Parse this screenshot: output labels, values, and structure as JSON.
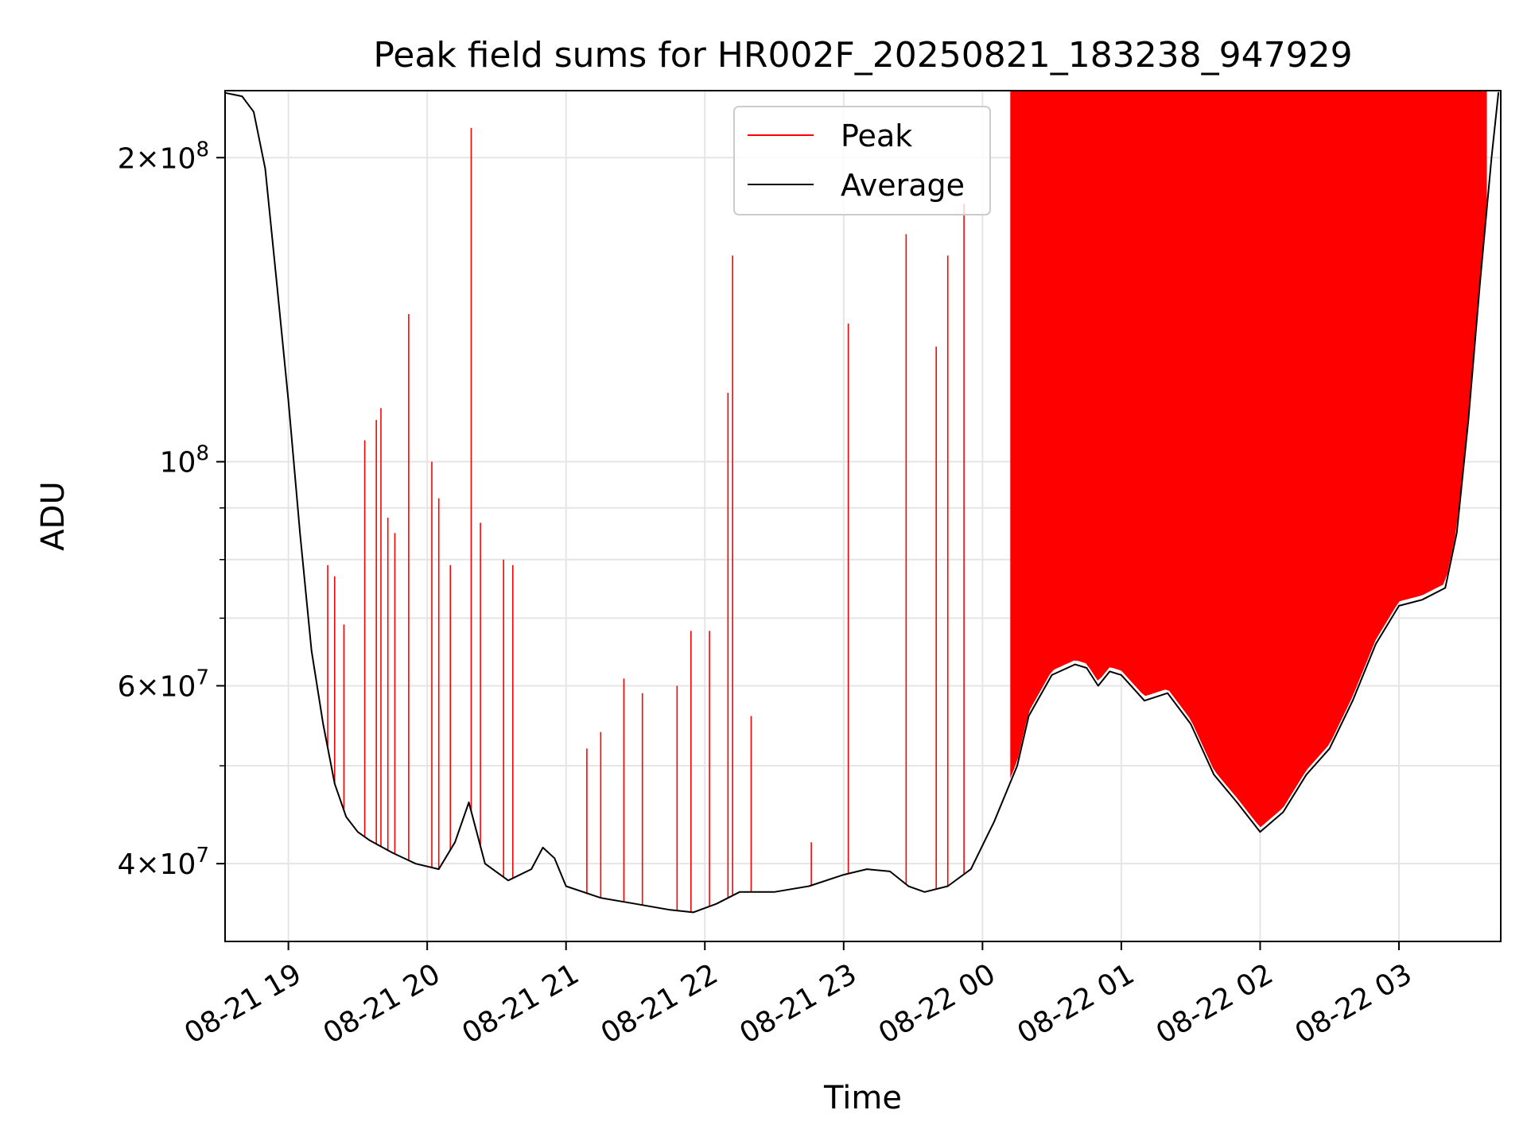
{
  "chart_data": {
    "type": "line",
    "title": "Peak field sums for HR002F_20250821_183238_947929",
    "xlabel": "Time",
    "ylabel": "ADU",
    "x_range": [
      "2025-08-21T18:32:38",
      "2025-08-22T03:44:00"
    ],
    "ylim": [
      33500000,
      233000000
    ],
    "y_scale": "log",
    "grid": true,
    "legend_position": "upper center",
    "x_ticks": [
      {
        "t": "2025-08-21T19:00",
        "label": "08-21 19"
      },
      {
        "t": "2025-08-21T20:00",
        "label": "08-21 20"
      },
      {
        "t": "2025-08-21T21:00",
        "label": "08-21 21"
      },
      {
        "t": "2025-08-21T22:00",
        "label": "08-21 22"
      },
      {
        "t": "2025-08-21T23:00",
        "label": "08-21 23"
      },
      {
        "t": "2025-08-22T00:00",
        "label": "08-22 00"
      },
      {
        "t": "2025-08-22T01:00",
        "label": "08-22 01"
      },
      {
        "t": "2025-08-22T02:00",
        "label": "08-22 02"
      },
      {
        "t": "2025-08-22T03:00",
        "label": "08-22 03"
      }
    ],
    "y_ticks_major": [
      {
        "v": 40000000,
        "mant": "4",
        "exp": "7"
      },
      {
        "v": 60000000,
        "mant": "6",
        "exp": "7"
      },
      {
        "v": 100000000,
        "mant": "",
        "exp": "8"
      },
      {
        "v": 200000000,
        "mant": "2",
        "exp": "8"
      }
    ],
    "y_ticks_minor": [
      50000000,
      70000000,
      80000000,
      90000000
    ],
    "series": [
      {
        "name": "Average",
        "color": "#000000",
        "x": [
          "2025-08-21T18:32",
          "2025-08-21T18:40",
          "2025-08-21T18:45",
          "2025-08-21T18:50",
          "2025-08-21T18:55",
          "2025-08-21T19:00",
          "2025-08-21T19:05",
          "2025-08-21T19:10",
          "2025-08-21T19:15",
          "2025-08-21T19:20",
          "2025-08-21T19:25",
          "2025-08-21T19:30",
          "2025-08-21T19:35",
          "2025-08-21T19:45",
          "2025-08-21T19:55",
          "2025-08-21T20:05",
          "2025-08-21T20:12",
          "2025-08-21T20:18",
          "2025-08-21T20:25",
          "2025-08-21T20:35",
          "2025-08-21T20:45",
          "2025-08-21T20:50",
          "2025-08-21T20:55",
          "2025-08-21T21:00",
          "2025-08-21T21:15",
          "2025-08-21T21:30",
          "2025-08-21T21:45",
          "2025-08-21T21:55",
          "2025-08-21T22:05",
          "2025-08-21T22:15",
          "2025-08-21T22:30",
          "2025-08-21T22:45",
          "2025-08-21T23:00",
          "2025-08-21T23:10",
          "2025-08-21T23:20",
          "2025-08-21T23:28",
          "2025-08-21T23:35",
          "2025-08-21T23:45",
          "2025-08-21T23:55",
          "2025-08-22T00:05",
          "2025-08-22T00:15",
          "2025-08-22T00:20",
          "2025-08-22T00:30",
          "2025-08-22T00:40",
          "2025-08-22T00:45",
          "2025-08-22T00:50",
          "2025-08-22T00:55",
          "2025-08-22T01:00",
          "2025-08-22T01:10",
          "2025-08-22T01:20",
          "2025-08-22T01:30",
          "2025-08-22T01:40",
          "2025-08-22T01:50",
          "2025-08-22T02:00",
          "2025-08-22T02:10",
          "2025-08-22T02:20",
          "2025-08-22T02:30",
          "2025-08-22T02:40",
          "2025-08-22T02:50",
          "2025-08-22T03:00",
          "2025-08-22T03:10",
          "2025-08-22T03:20",
          "2025-08-22T03:25",
          "2025-08-22T03:30",
          "2025-08-22T03:35",
          "2025-08-22T03:40",
          "2025-08-22T03:43"
        ],
        "values": [
          232000000,
          230000000,
          222000000,
          195000000,
          150000000,
          115000000,
          85000000,
          65000000,
          55000000,
          48000000,
          44500000,
          43000000,
          42200000,
          41000000,
          40000000,
          39500000,
          42000000,
          46000000,
          40000000,
          38500000,
          39500000,
          41500000,
          40500000,
          38000000,
          37000000,
          36500000,
          36000000,
          35800000,
          36500000,
          37500000,
          37500000,
          38000000,
          39000000,
          39500000,
          39300000,
          38000000,
          37500000,
          38000000,
          39500000,
          44000000,
          50000000,
          56000000,
          61500000,
          63000000,
          62500000,
          60000000,
          62000000,
          61500000,
          58000000,
          59000000,
          55000000,
          49000000,
          46000000,
          43000000,
          45000000,
          49000000,
          52000000,
          58000000,
          66000000,
          72000000,
          73000000,
          75000000,
          85000000,
          110000000,
          150000000,
          200000000,
          232000000
        ]
      },
      {
        "name": "Peak",
        "color": "#ff0000",
        "spikes": [
          {
            "t": "2025-08-21T19:17",
            "v": 79000000
          },
          {
            "t": "2025-08-21T19:20",
            "v": 77000000
          },
          {
            "t": "2025-08-21T19:24",
            "v": 69000000
          },
          {
            "t": "2025-08-21T19:33",
            "v": 105000000
          },
          {
            "t": "2025-08-21T19:38",
            "v": 110000000
          },
          {
            "t": "2025-08-21T19:40",
            "v": 113000000
          },
          {
            "t": "2025-08-21T19:43",
            "v": 88000000
          },
          {
            "t": "2025-08-21T19:46",
            "v": 85000000
          },
          {
            "t": "2025-08-21T19:52",
            "v": 140000000
          },
          {
            "t": "2025-08-21T20:02",
            "v": 100000000
          },
          {
            "t": "2025-08-21T20:05",
            "v": 92000000
          },
          {
            "t": "2025-08-21T20:10",
            "v": 79000000
          },
          {
            "t": "2025-08-21T20:19",
            "v": 214000000
          },
          {
            "t": "2025-08-21T20:23",
            "v": 87000000
          },
          {
            "t": "2025-08-21T20:33",
            "v": 80000000
          },
          {
            "t": "2025-08-21T20:37",
            "v": 79000000
          },
          {
            "t": "2025-08-21T21:09",
            "v": 52000000
          },
          {
            "t": "2025-08-21T21:15",
            "v": 54000000
          },
          {
            "t": "2025-08-21T21:25",
            "v": 61000000
          },
          {
            "t": "2025-08-21T21:33",
            "v": 59000000
          },
          {
            "t": "2025-08-21T21:48",
            "v": 60000000
          },
          {
            "t": "2025-08-21T21:54",
            "v": 68000000
          },
          {
            "t": "2025-08-21T22:02",
            "v": 68000000
          },
          {
            "t": "2025-08-21T22:10",
            "v": 117000000
          },
          {
            "t": "2025-08-21T22:12",
            "v": 160000000
          },
          {
            "t": "2025-08-21T22:20",
            "v": 56000000
          },
          {
            "t": "2025-08-21T22:46",
            "v": 42000000
          },
          {
            "t": "2025-08-21T23:02",
            "v": 137000000
          },
          {
            "t": "2025-08-21T23:27",
            "v": 168000000
          },
          {
            "t": "2025-08-21T23:40",
            "v": 130000000
          },
          {
            "t": "2025-08-21T23:45",
            "v": 160000000
          },
          {
            "t": "2025-08-21T23:52",
            "v": 180000000
          }
        ],
        "dense_band": [
          {
            "t_start": "2025-08-22T00:12",
            "t_end": "2025-08-22T03:38",
            "v_max": 233000000
          }
        ]
      }
    ]
  }
}
